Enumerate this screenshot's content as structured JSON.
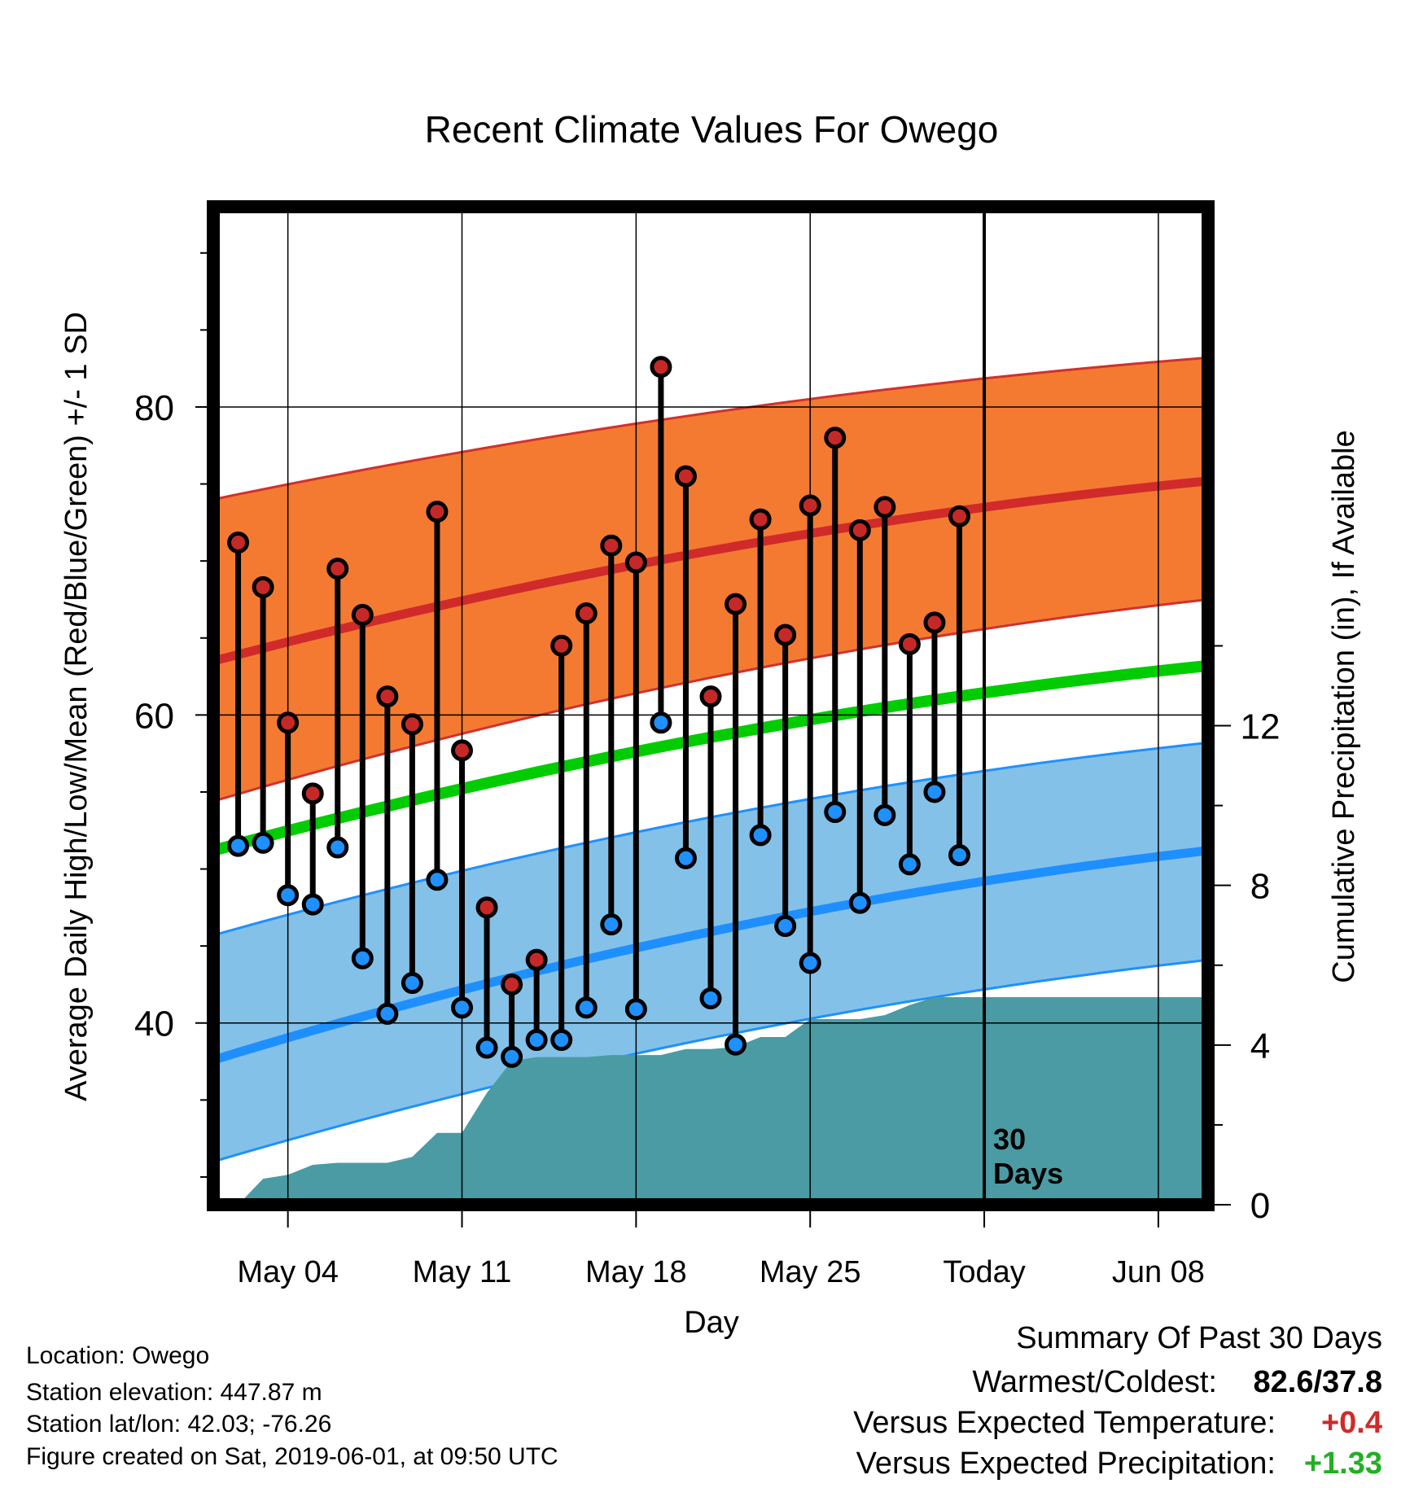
{
  "chart_data": {
    "type": "line",
    "title": "Recent Climate Values For Owego",
    "xlabel": "Day",
    "ylabel": "Average Daily High/Low/Mean (Red/Blue/Green) +/- 1 SD",
    "y2label": "Cumulative Precipitation (in), If Available",
    "ylim": [
      28.2,
      93
    ],
    "yticks": [
      40,
      60,
      80
    ],
    "y2lim": [
      0,
      25
    ],
    "y2ticks": [
      0,
      4,
      8,
      12
    ],
    "x_range_days": [
      -31,
      9
    ],
    "xtick_labels": [
      {
        "day": -28,
        "label": "May 04"
      },
      {
        "day": -21,
        "label": "May 11"
      },
      {
        "day": -14,
        "label": "May 18"
      },
      {
        "day": -7,
        "label": "May 25"
      },
      {
        "day": 0,
        "label": "Today"
      },
      {
        "day": 7,
        "label": "Jun 08"
      }
    ],
    "today_label": [
      "30",
      "Days"
    ],
    "days": [
      -30,
      -29,
      -28,
      -27,
      -26,
      -25,
      -24,
      -23,
      -22,
      -21,
      -20,
      -19,
      -18,
      -17,
      -16,
      -15,
      -14,
      -13,
      -12,
      -11,
      -10,
      -9,
      -8,
      -7,
      -6,
      -5,
      -4,
      -3,
      -2,
      -1
    ],
    "daily_high": [
      71.2,
      68.3,
      59.5,
      54.9,
      69.5,
      66.5,
      61.2,
      59.4,
      73.2,
      57.7,
      47.5,
      42.5,
      44.1,
      64.5,
      66.6,
      71.0,
      69.9,
      82.6,
      75.5,
      61.2,
      67.2,
      72.7,
      65.2,
      73.6,
      78.0,
      72.0,
      73.5,
      64.6,
      66.0,
      72.9
    ],
    "daily_low": [
      51.5,
      51.7,
      48.3,
      47.7,
      51.4,
      44.2,
      40.6,
      42.6,
      49.3,
      41.0,
      38.4,
      37.8,
      38.9,
      38.9,
      41.0,
      46.4,
      40.9,
      59.5,
      50.7,
      41.6,
      38.6,
      52.2,
      46.3,
      43.9,
      53.7,
      47.8,
      53.5,
      50.3,
      55.0,
      50.9
    ],
    "normal_high": {
      "start": 63.5,
      "end": 75.2
    },
    "normal_high_sd": {
      "upper_start": 74.0,
      "upper_end": 83.2,
      "lower_start": 54.4,
      "lower_end": 67.5
    },
    "normal_mean": {
      "start": 51.2,
      "end": 63.2
    },
    "normal_low": {
      "start": 37.6,
      "end": 51.2
    },
    "normal_low_sd": {
      "upper_start": 45.7,
      "upper_end": 58.2,
      "lower_start": 31.0,
      "lower_end": 44.1
    },
    "normal_curve_days": [
      -31,
      9
    ],
    "cumulative_precip": {
      "days": [
        -30,
        -29,
        -28,
        -27,
        -26,
        -25,
        -24,
        -23,
        -22,
        -21,
        -20,
        -19,
        -18,
        -17,
        -16,
        -15,
        -14,
        -13,
        -12,
        -11,
        -10,
        -9,
        -8,
        -7,
        -6,
        -5,
        -4,
        -3,
        -2,
        -1,
        0,
        9
      ],
      "values": [
        0.0,
        0.65,
        0.75,
        1.0,
        1.05,
        1.05,
        1.05,
        1.2,
        1.8,
        1.8,
        2.8,
        3.6,
        3.7,
        3.7,
        3.7,
        3.75,
        3.75,
        3.75,
        3.9,
        3.9,
        3.95,
        4.2,
        4.2,
        4.65,
        4.65,
        4.65,
        4.75,
        5.0,
        5.2,
        5.2,
        5.2,
        5.2
      ]
    },
    "grid": true,
    "colors": {
      "high_band": "#F47A32",
      "high_band_edge": "#D0312D",
      "high_line": "#D02A2A",
      "mean_line": "#00CC00",
      "low_band": "#84C1E8",
      "low_band_edge": "#1E90FF",
      "low_line": "#1E8FFF",
      "precip": "#4A9BA4",
      "high_marker": "#C62828",
      "low_marker": "#1E90FF"
    }
  },
  "info": {
    "location": "Location: Owego",
    "elevation": "Station elevation: 447.87 m",
    "latlon": "Station lat/lon: 42.03; -76.26",
    "created": "Figure created on Sat, 2019-06-01, at 09:50 UTC"
  },
  "summary": {
    "title": "Summary Of Past 30 Days",
    "warm_cold_label": "Warmest/Coldest:",
    "warm_cold_value": "82.6/37.8",
    "temp_label": "Versus Expected Temperature:",
    "temp_value": "+0.4",
    "temp_color": "#D02A2A",
    "precip_label": "Versus Expected Precipitation:",
    "precip_value": "+1.33",
    "precip_color": "#22B022"
  }
}
